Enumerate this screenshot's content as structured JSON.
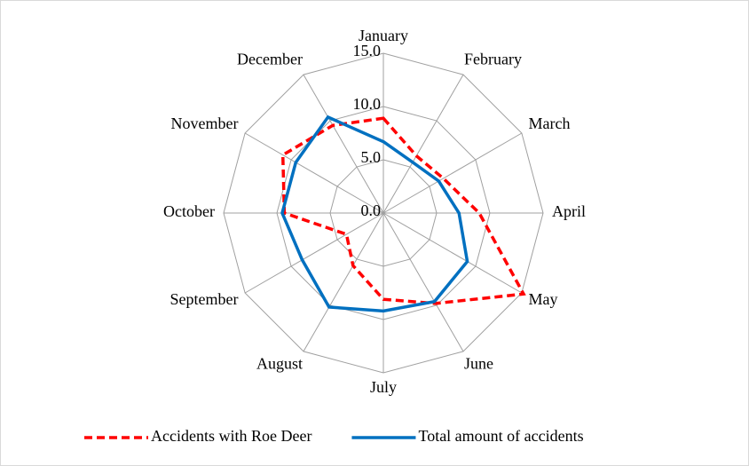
{
  "chart_data": {
    "type": "radar",
    "categories": [
      "January",
      "February",
      "March",
      "April",
      "May",
      "June",
      "July",
      "August",
      "September",
      "October",
      "November",
      "December"
    ],
    "series": [
      {
        "name": "Accidents with Roe Deer",
        "color": "#ff0000",
        "dash": true,
        "values": [
          8.9,
          6.2,
          6.5,
          9.0,
          15.2,
          9.8,
          8.1,
          5.7,
          4.0,
          9.3,
          10.9,
          9.5
        ]
      },
      {
        "name": "Total amount of accidents",
        "color": "#0070c0",
        "dash": false,
        "values": [
          6.7,
          5.5,
          6.0,
          7.1,
          9.1,
          9.6,
          9.2,
          10.2,
          8.8,
          9.5,
          9.5,
          10.4
        ]
      }
    ],
    "ylim": [
      0,
      15
    ],
    "yticks": [
      {
        "value": 0,
        "label": "0.0"
      },
      {
        "value": 5,
        "label": "5.0"
      },
      {
        "value": 10,
        "label": "10.0"
      },
      {
        "value": 15,
        "label": "15.0"
      }
    ],
    "grid": true,
    "legend": "bottom"
  }
}
